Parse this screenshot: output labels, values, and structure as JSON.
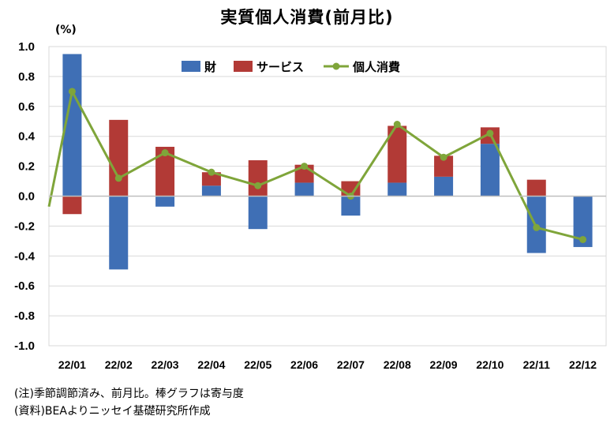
{
  "chart_data": {
    "type": "bar",
    "title": "実質個人消費(前月比)",
    "unit": "(%)",
    "categories": [
      "22/01",
      "22/02",
      "22/03",
      "22/04",
      "22/05",
      "22/06",
      "22/07",
      "22/08",
      "22/09",
      "22/10",
      "22/11",
      "22/12"
    ],
    "ylim": [
      -1.0,
      1.0
    ],
    "yticks": [
      "1.0",
      "0.8",
      "0.6",
      "0.4",
      "0.2",
      "0.0",
      "-0.2",
      "-0.4",
      "-0.6",
      "-0.8",
      "-1.0"
    ],
    "ytick_values": [
      1.0,
      0.8,
      0.6,
      0.4,
      0.2,
      0.0,
      -0.2,
      -0.4,
      -0.6,
      -0.8,
      -1.0
    ],
    "legend_position": "top",
    "series": [
      {
        "name": "財",
        "kind": "stacked-bar",
        "color": "#3F6FB5",
        "values": [
          0.95,
          -0.49,
          -0.07,
          0.07,
          -0.22,
          0.09,
          -0.13,
          0.09,
          0.13,
          0.35,
          -0.38,
          -0.34
        ]
      },
      {
        "name": "サービス",
        "kind": "stacked-bar",
        "color": "#B23A36",
        "values": [
          -0.12,
          0.51,
          0.33,
          0.09,
          0.24,
          0.12,
          0.1,
          0.38,
          0.14,
          0.11,
          0.11,
          0.0
        ]
      },
      {
        "name": "個人消費",
        "kind": "line",
        "color": "#7FA53A",
        "values": [
          0.7,
          0.12,
          0.29,
          0.16,
          0.07,
          0.2,
          0.0,
          0.48,
          0.26,
          0.42,
          -0.21,
          -0.29
        ]
      }
    ]
  },
  "notes": [
    "(注)季節調節済み、前月比。棒グラフは寄与度",
    "(資料)BEAよりニッセイ基礎研究所作成"
  ]
}
